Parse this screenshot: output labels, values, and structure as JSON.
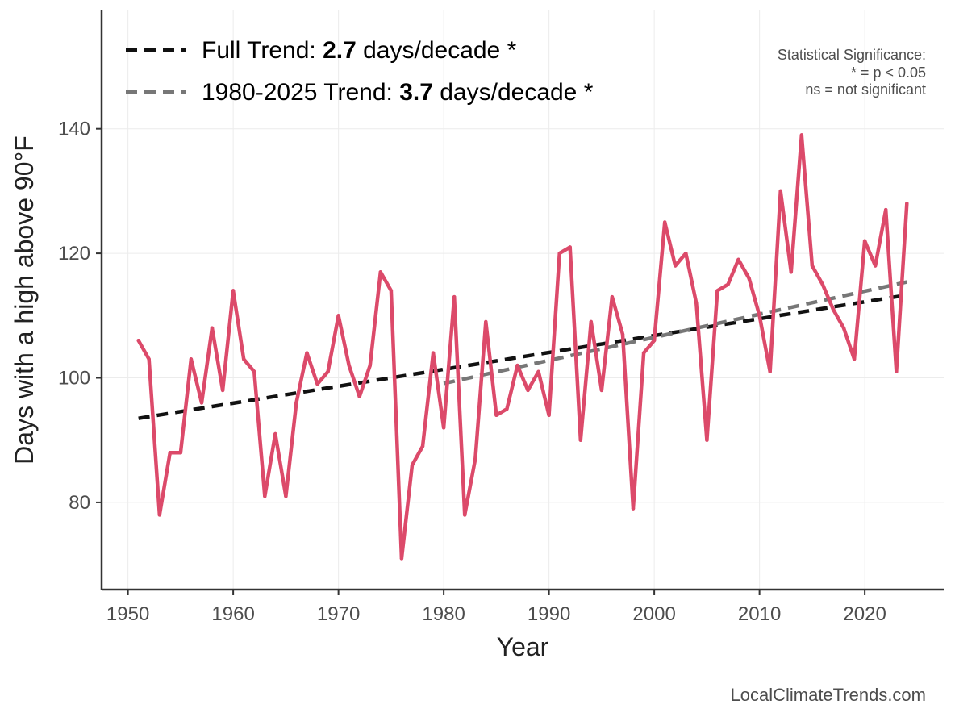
{
  "chart_data": {
    "type": "line",
    "xlabel": "Year",
    "ylabel": "Days with a high above 90°F",
    "xlim": [
      1947.5,
      2027.5
    ],
    "ylim": [
      66,
      159
    ],
    "x_ticks": [
      1950,
      1960,
      1970,
      1980,
      1990,
      2000,
      2010,
      2020
    ],
    "y_ticks": [
      80,
      100,
      120,
      140
    ],
    "grid": true,
    "series": [
      {
        "name": "Days above 90°F",
        "color": "#dc4a6a",
        "x": [
          1951,
          1952,
          1953,
          1954,
          1955,
          1956,
          1957,
          1958,
          1959,
          1960,
          1961,
          1962,
          1963,
          1964,
          1965,
          1966,
          1967,
          1968,
          1969,
          1970,
          1971,
          1972,
          1973,
          1974,
          1975,
          1976,
          1977,
          1978,
          1979,
          1980,
          1981,
          1982,
          1983,
          1984,
          1985,
          1986,
          1987,
          1988,
          1989,
          1990,
          1991,
          1992,
          1993,
          1994,
          1995,
          1996,
          1997,
          1998,
          1999,
          2000,
          2001,
          2002,
          2003,
          2004,
          2005,
          2006,
          2007,
          2008,
          2009,
          2010,
          2011,
          2012,
          2013,
          2014,
          2015,
          2016,
          2017,
          2018,
          2019,
          2020,
          2021,
          2022,
          2023,
          2024
        ],
        "values": [
          106,
          103,
          78,
          88,
          88,
          103,
          96,
          108,
          98,
          114,
          103,
          101,
          81,
          91,
          81,
          96,
          104,
          99,
          101,
          110,
          102,
          97,
          102,
          117,
          114,
          71,
          86,
          89,
          104,
          92,
          113,
          78,
          87,
          109,
          94,
          95,
          102,
          98,
          101,
          94,
          120,
          121,
          90,
          109,
          98,
          113,
          107,
          79,
          104,
          106,
          125,
          118,
          120,
          112,
          90,
          114,
          115,
          119,
          116,
          110,
          101,
          130,
          117,
          139,
          118,
          115,
          111,
          108,
          103,
          122,
          118,
          127,
          101,
          128
        ]
      }
    ],
    "trend_lines": [
      {
        "label_prefix": "Full Trend: ",
        "label_value": "2.7",
        "label_suffix": " days/decade *",
        "color": "#111111",
        "x": [
          1951,
          2024
        ],
        "y": [
          93.5,
          113.3
        ]
      },
      {
        "label_prefix": "1980-2025 Trend: ",
        "label_value": "3.7",
        "label_suffix": " days/decade *",
        "color": "#777777",
        "x": [
          1980,
          2024
        ],
        "y": [
          99.1,
          115.4
        ]
      }
    ],
    "significance_note": [
      "Statistical Significance:",
      "* = p < 0.05",
      "ns = not significant"
    ],
    "source": "LocalClimateTrends.com"
  }
}
